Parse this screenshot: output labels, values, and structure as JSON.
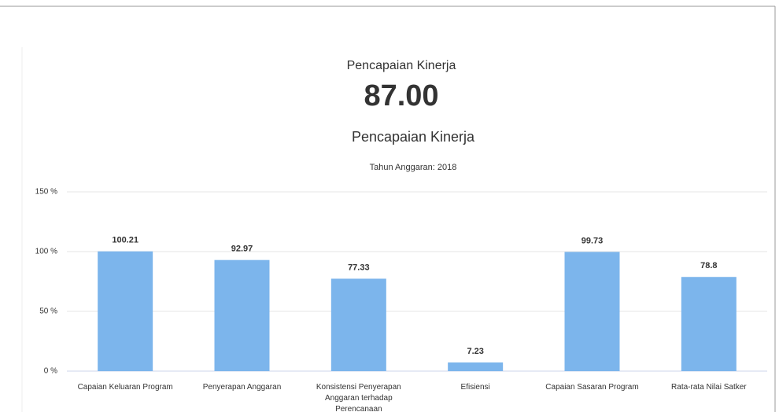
{
  "header": {
    "label": "Pencapaian Kinerja",
    "value": "87.00"
  },
  "chart_data": {
    "type": "bar",
    "title": "Pencapaian Kinerja",
    "subtitle": "Tahun Anggaran: 2018",
    "categories": [
      "Capaian Keluaran Program",
      "Penyerapan Anggaran",
      "Konsistensi Penyerapan Anggaran terhadap Perencanaan",
      "Efisiensi",
      "Capaian Sasaran Program",
      "Rata-rata Nilai Satker"
    ],
    "values": [
      100.21,
      92.97,
      77.33,
      7.23,
      99.73,
      78.8
    ],
    "color": "#7cb5ec",
    "ylim": [
      0,
      150
    ],
    "yticks": [
      {
        "value": 0,
        "label": "0 %"
      },
      {
        "value": 50,
        "label": "50 %"
      },
      {
        "value": 100,
        "label": "100 %"
      },
      {
        "value": 150,
        "label": "150 %"
      }
    ],
    "grid": true
  }
}
